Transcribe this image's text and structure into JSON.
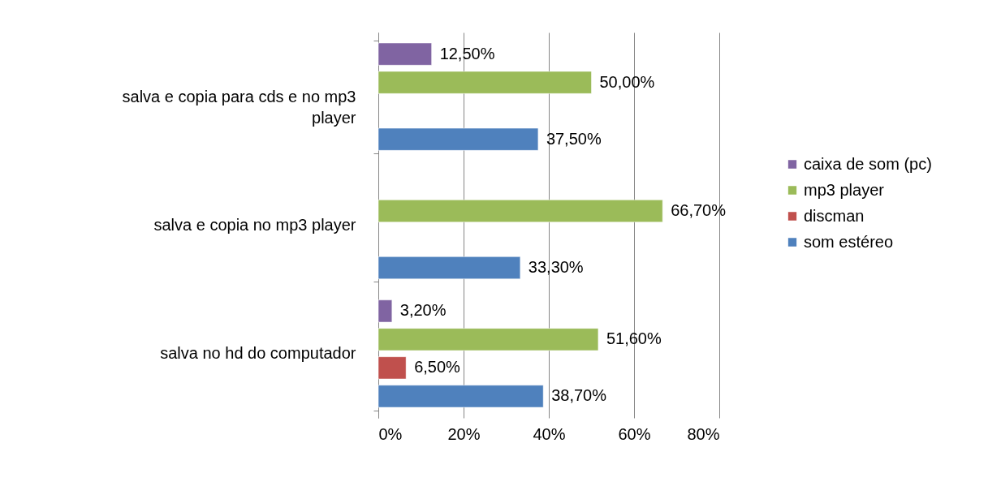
{
  "chart_data": {
    "type": "bar",
    "orientation": "horizontal",
    "categories": [
      "salva e copia para cds e no mp3 player",
      "salva e copia no mp3 player",
      "salva no hd do computador"
    ],
    "series": [
      {
        "name": "caixa de som (pc)",
        "color": "#8064a2",
        "values": [
          12.5,
          null,
          3.2
        ],
        "value_labels": [
          "12,50%",
          null,
          "3,20%"
        ]
      },
      {
        "name": "mp3 player",
        "color": "#9bbb59",
        "values": [
          50.0,
          66.7,
          51.6
        ],
        "value_labels": [
          "50,00%",
          "66,70%",
          "51,60%"
        ]
      },
      {
        "name": "discman",
        "color": "#c0504d",
        "values": [
          null,
          null,
          6.5
        ],
        "value_labels": [
          null,
          null,
          "6,50%"
        ]
      },
      {
        "name": "som estéreo",
        "color": "#4f81bd",
        "values": [
          37.5,
          33.3,
          38.7
        ],
        "value_labels": [
          "37,50%",
          "33,30%",
          "38,70%"
        ]
      }
    ],
    "xlim": [
      0,
      80
    ],
    "xticks": [
      {
        "value": 0,
        "label": "0%"
      },
      {
        "value": 20,
        "label": "20%"
      },
      {
        "value": 40,
        "label": "40%"
      },
      {
        "value": 60,
        "label": "60%"
      },
      {
        "value": 80,
        "label": "80%"
      }
    ],
    "grid": "x",
    "legend": "right"
  }
}
